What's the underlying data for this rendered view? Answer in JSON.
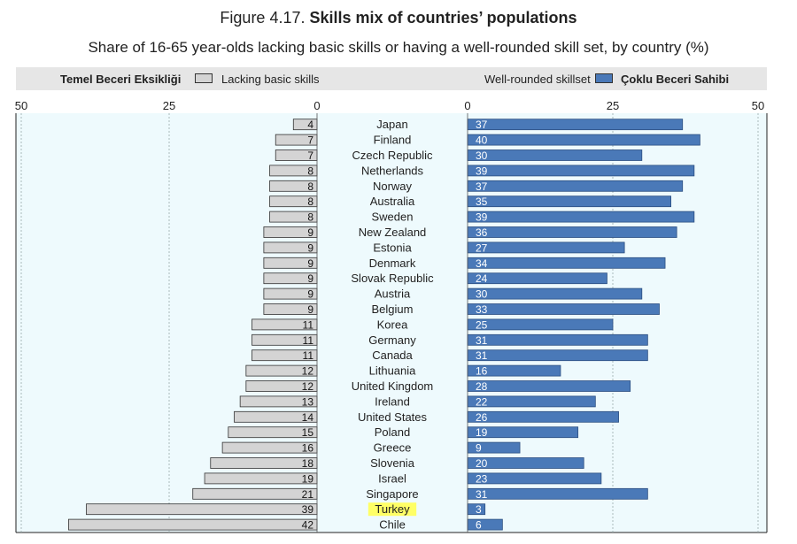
{
  "figure": {
    "number": "Figure 4.17.",
    "title": "Skills mix of countries’ populations",
    "subtitle": "Share of 16-65 year-olds lacking basic skills or having a well-rounded skill set, by country (%)"
  },
  "legend": {
    "left_tr": "Temel Beceri Eksikliği",
    "left_en": "Lacking basic skills",
    "right_en": "Well-rounded skillset",
    "right_tr": "Çoklu Beceri Sahibi"
  },
  "colors": {
    "lacking": "#d4d4d4",
    "wellrounded": "#4a79b8",
    "highlight": "#ffff66",
    "panel": "#eefafd"
  },
  "chart_data": {
    "type": "bar",
    "highlight_category": "Turkey",
    "categories": [
      "Japan",
      "Finland",
      "Czech Republic",
      "Netherlands",
      "Norway",
      "Australia",
      "Sweden",
      "New Zealand",
      "Estonia",
      "Denmark",
      "Slovak Republic",
      "Austria",
      "Belgium",
      "Korea",
      "Germany",
      "Canada",
      "Lithuania",
      "United Kingdom",
      "Ireland",
      "United States",
      "Poland",
      "Greece",
      "Slovenia",
      "Israel",
      "Singapore",
      "Turkey",
      "Chile"
    ],
    "series": [
      {
        "name": "Lacking basic skills",
        "values": [
          4,
          7,
          7,
          8,
          8,
          8,
          8,
          9,
          9,
          9,
          9,
          9,
          9,
          11,
          11,
          11,
          12,
          12,
          13,
          14,
          15,
          16,
          18,
          19,
          21,
          39,
          42
        ]
      },
      {
        "name": "Well-rounded skillset",
        "values": [
          37,
          40,
          30,
          39,
          37,
          35,
          39,
          36,
          27,
          34,
          24,
          30,
          33,
          25,
          31,
          31,
          16,
          28,
          22,
          26,
          19,
          9,
          20,
          23,
          31,
          3,
          6
        ]
      }
    ],
    "left_axis": {
      "ticks": [
        "50",
        "25",
        "0"
      ],
      "lim": [
        0,
        50
      ],
      "reversed": true
    },
    "right_axis": {
      "ticks": [
        "0",
        "25",
        "50"
      ],
      "lim": [
        0,
        50
      ]
    },
    "grid": true
  }
}
